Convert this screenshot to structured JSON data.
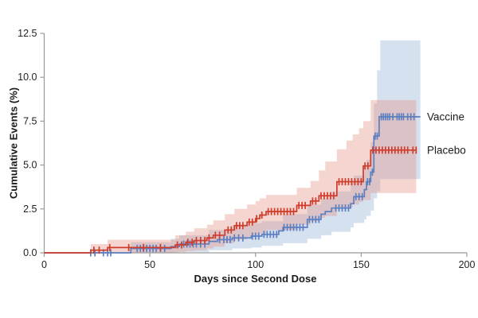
{
  "figure": {
    "background": "#ffffff",
    "axis_color": "#999999",
    "tick_label_color": "#222222"
  },
  "chart_data": {
    "type": "line",
    "subtype": "kaplan-meier-cumulative-incidence-step",
    "title": "",
    "xlabel": "Days since Second Dose",
    "ylabel": "Cumulative Events (%)",
    "xlim": [
      0,
      200
    ],
    "ylim": [
      0,
      12.5
    ],
    "xticks": [
      0,
      50,
      100,
      150,
      200
    ],
    "ytick_values": [
      0,
      2.5,
      5,
      7.5,
      10,
      12.5
    ],
    "ytick_labels": [
      "0.0",
      "2.5",
      "5.0",
      "7.5",
      "10.0",
      "12.5"
    ],
    "grid": false,
    "legend_position": "right-of-curve-ends",
    "series": [
      {
        "name": "Vaccine",
        "color": "#5b7fc0",
        "band_color": "#9db8dc",
        "band_opacity": 0.42,
        "end_day": 178,
        "final_value": 7.75,
        "label_anchor": {
          "day": 180,
          "value": 7.75
        },
        "steps": [
          [
            0,
            0
          ],
          [
            41,
            0.25
          ],
          [
            60,
            0.35
          ],
          [
            64,
            0.5
          ],
          [
            78,
            0.65
          ],
          [
            82,
            0.75
          ],
          [
            89,
            0.85
          ],
          [
            98,
            0.95
          ],
          [
            103,
            1.05
          ],
          [
            111,
            1.25
          ],
          [
            113,
            1.45
          ],
          [
            124.5,
            1.9
          ],
          [
            131,
            2.2
          ],
          [
            133,
            2.35
          ],
          [
            136,
            2.55
          ],
          [
            145,
            2.8
          ],
          [
            146.5,
            3.2
          ],
          [
            151.5,
            3.6
          ],
          [
            152.5,
            4.05
          ],
          [
            154.5,
            4.6
          ],
          [
            156,
            6.65
          ],
          [
            158.5,
            7.75
          ],
          [
            178,
            7.75
          ]
        ],
        "censor_ticks": [
          [
            22,
            0
          ],
          [
            24,
            0
          ],
          [
            28,
            0
          ],
          [
            30,
            0
          ],
          [
            31.5,
            0
          ],
          [
            44,
            0.25
          ],
          [
            45.5,
            0.25
          ],
          [
            47,
            0.25
          ],
          [
            48.5,
            0.25
          ],
          [
            50,
            0.25
          ],
          [
            51.5,
            0.25
          ],
          [
            53,
            0.25
          ],
          [
            55,
            0.25
          ],
          [
            57,
            0.25
          ],
          [
            66,
            0.5
          ],
          [
            67.5,
            0.5
          ],
          [
            69,
            0.5
          ],
          [
            70.5,
            0.5
          ],
          [
            72,
            0.5
          ],
          [
            74,
            0.5
          ],
          [
            76,
            0.5
          ],
          [
            83,
            0.75
          ],
          [
            85,
            0.75
          ],
          [
            86.5,
            0.75
          ],
          [
            88,
            0.75
          ],
          [
            90,
            0.85
          ],
          [
            92,
            0.85
          ],
          [
            94,
            0.85
          ],
          [
            98.5,
            0.95
          ],
          [
            100,
            0.95
          ],
          [
            101.5,
            0.95
          ],
          [
            104,
            1.05
          ],
          [
            105.5,
            1.05
          ],
          [
            107,
            1.05
          ],
          [
            108.5,
            1.05
          ],
          [
            110,
            1.05
          ],
          [
            113.5,
            1.45
          ],
          [
            115,
            1.45
          ],
          [
            116.5,
            1.45
          ],
          [
            118,
            1.45
          ],
          [
            119.5,
            1.45
          ],
          [
            121,
            1.45
          ],
          [
            122.5,
            1.45
          ],
          [
            125.5,
            1.9
          ],
          [
            127,
            1.9
          ],
          [
            128.5,
            1.9
          ],
          [
            130,
            1.9
          ],
          [
            138,
            2.55
          ],
          [
            139.5,
            2.55
          ],
          [
            141,
            2.55
          ],
          [
            142.5,
            2.55
          ],
          [
            144,
            2.55
          ],
          [
            147.5,
            3.2
          ],
          [
            149,
            3.2
          ],
          [
            150.5,
            3.2
          ],
          [
            153,
            4.05
          ],
          [
            154,
            4.05
          ],
          [
            155.3,
            4.6
          ],
          [
            156.6,
            6.65
          ],
          [
            157.6,
            6.65
          ],
          [
            159.5,
            7.75
          ],
          [
            160.5,
            7.75
          ],
          [
            161.5,
            7.75
          ],
          [
            162.5,
            7.75
          ],
          [
            163.5,
            7.75
          ],
          [
            165,
            7.75
          ],
          [
            167,
            7.75
          ],
          [
            168,
            7.75
          ],
          [
            169,
            7.75
          ],
          [
            170,
            7.75
          ],
          [
            172,
            7.75
          ],
          [
            173.5,
            7.75
          ],
          [
            175,
            7.75
          ]
        ],
        "ci_band": [
          [
            0,
            0,
            0
          ],
          [
            41,
            0,
            0.6
          ],
          [
            60,
            0,
            0.8
          ],
          [
            64,
            0.05,
            1.0
          ],
          [
            78,
            0.15,
            1.3
          ],
          [
            89,
            0.25,
            1.55
          ],
          [
            98,
            0.3,
            1.7
          ],
          [
            103,
            0.4,
            1.8
          ],
          [
            113,
            0.55,
            2.2
          ],
          [
            124.5,
            0.8,
            2.75
          ],
          [
            131,
            1.0,
            3.1
          ],
          [
            136,
            1.2,
            3.5
          ],
          [
            145,
            1.45,
            4.0
          ],
          [
            146.5,
            1.7,
            4.4
          ],
          [
            151.5,
            1.9,
            4.9
          ],
          [
            152.5,
            2.1,
            5.3
          ],
          [
            154.5,
            2.4,
            6.3
          ],
          [
            156,
            3.1,
            8.5
          ],
          [
            157.5,
            3.5,
            10.4
          ],
          [
            159,
            4.2,
            12.1
          ],
          [
            178,
            4.2,
            12.1
          ]
        ]
      },
      {
        "name": "Placebo",
        "color": "#cf3c2b",
        "band_color": "#e59181",
        "band_opacity": 0.38,
        "end_day": 176,
        "final_value": 5.85,
        "label_anchor": {
          "day": 180,
          "value": 5.85
        },
        "steps": [
          [
            0,
            0
          ],
          [
            22,
            0.15
          ],
          [
            30,
            0.3
          ],
          [
            62,
            0.45
          ],
          [
            67,
            0.6
          ],
          [
            71,
            0.7
          ],
          [
            77,
            0.85
          ],
          [
            80,
            1.0
          ],
          [
            85.5,
            1.3
          ],
          [
            90,
            1.55
          ],
          [
            96,
            1.75
          ],
          [
            100,
            1.95
          ],
          [
            102,
            2.15
          ],
          [
            105,
            2.35
          ],
          [
            119.5,
            2.7
          ],
          [
            126,
            2.95
          ],
          [
            130,
            3.25
          ],
          [
            138.5,
            4.05
          ],
          [
            151,
            4.95
          ],
          [
            154.5,
            5.85
          ],
          [
            176,
            5.85
          ]
        ],
        "censor_ticks": [
          [
            23.5,
            0.15
          ],
          [
            26,
            0.15
          ],
          [
            31,
            0.3
          ],
          [
            40,
            0.3
          ],
          [
            47,
            0.3
          ],
          [
            55,
            0.3
          ],
          [
            63,
            0.45
          ],
          [
            65,
            0.45
          ],
          [
            68,
            0.6
          ],
          [
            70,
            0.6
          ],
          [
            72,
            0.7
          ],
          [
            74,
            0.7
          ],
          [
            76,
            0.7
          ],
          [
            78,
            0.85
          ],
          [
            81,
            1.0
          ],
          [
            83,
            1.0
          ],
          [
            87,
            1.3
          ],
          [
            88.5,
            1.3
          ],
          [
            91,
            1.55
          ],
          [
            92.5,
            1.55
          ],
          [
            94,
            1.55
          ],
          [
            97,
            1.75
          ],
          [
            98.5,
            1.75
          ],
          [
            100.5,
            1.95
          ],
          [
            103,
            2.15
          ],
          [
            106,
            2.35
          ],
          [
            107.5,
            2.35
          ],
          [
            109,
            2.35
          ],
          [
            110.5,
            2.35
          ],
          [
            112,
            2.35
          ],
          [
            113.5,
            2.35
          ],
          [
            115,
            2.35
          ],
          [
            116.5,
            2.35
          ],
          [
            118,
            2.35
          ],
          [
            120.5,
            2.7
          ],
          [
            122,
            2.7
          ],
          [
            123.5,
            2.7
          ],
          [
            127,
            2.95
          ],
          [
            128.5,
            2.95
          ],
          [
            131,
            3.25
          ],
          [
            132.5,
            3.25
          ],
          [
            134,
            3.25
          ],
          [
            135.5,
            3.25
          ],
          [
            137,
            3.25
          ],
          [
            139.5,
            4.05
          ],
          [
            141,
            4.05
          ],
          [
            142.5,
            4.05
          ],
          [
            144,
            4.05
          ],
          [
            145.5,
            4.05
          ],
          [
            147,
            4.05
          ],
          [
            148.5,
            4.05
          ],
          [
            150,
            4.05
          ],
          [
            151.8,
            4.95
          ],
          [
            153.2,
            4.95
          ],
          [
            155.5,
            5.85
          ],
          [
            157,
            5.85
          ],
          [
            158.5,
            5.85
          ],
          [
            160,
            5.85
          ],
          [
            161.5,
            5.85
          ],
          [
            163,
            5.85
          ],
          [
            164.5,
            5.85
          ],
          [
            166,
            5.85
          ],
          [
            167.5,
            5.85
          ],
          [
            169,
            5.85
          ],
          [
            170.5,
            5.85
          ],
          [
            172,
            5.85
          ],
          [
            174.5,
            5.85
          ],
          [
            176,
            5.85
          ]
        ],
        "ci_band": [
          [
            0,
            0,
            0
          ],
          [
            22,
            0,
            0.5
          ],
          [
            30,
            0,
            0.75
          ],
          [
            62,
            0.05,
            1.0
          ],
          [
            67,
            0.1,
            1.2
          ],
          [
            71,
            0.15,
            1.4
          ],
          [
            77,
            0.25,
            1.6
          ],
          [
            80,
            0.35,
            1.85
          ],
          [
            85.5,
            0.55,
            2.2
          ],
          [
            90,
            0.75,
            2.5
          ],
          [
            96,
            0.9,
            2.75
          ],
          [
            100,
            1.0,
            2.95
          ],
          [
            102,
            1.1,
            3.1
          ],
          [
            105,
            1.3,
            3.3
          ],
          [
            119.5,
            1.6,
            3.7
          ],
          [
            126,
            1.8,
            4.1
          ],
          [
            130,
            2.0,
            4.7
          ],
          [
            133,
            2.1,
            5.2
          ],
          [
            138.5,
            2.5,
            5.9
          ],
          [
            143,
            2.6,
            6.4
          ],
          [
            146,
            2.75,
            6.75
          ],
          [
            149,
            2.9,
            7.1
          ],
          [
            151,
            3.0,
            7.5
          ],
          [
            154.5,
            3.4,
            8.7
          ],
          [
            176,
            3.4,
            8.7
          ]
        ]
      }
    ]
  }
}
